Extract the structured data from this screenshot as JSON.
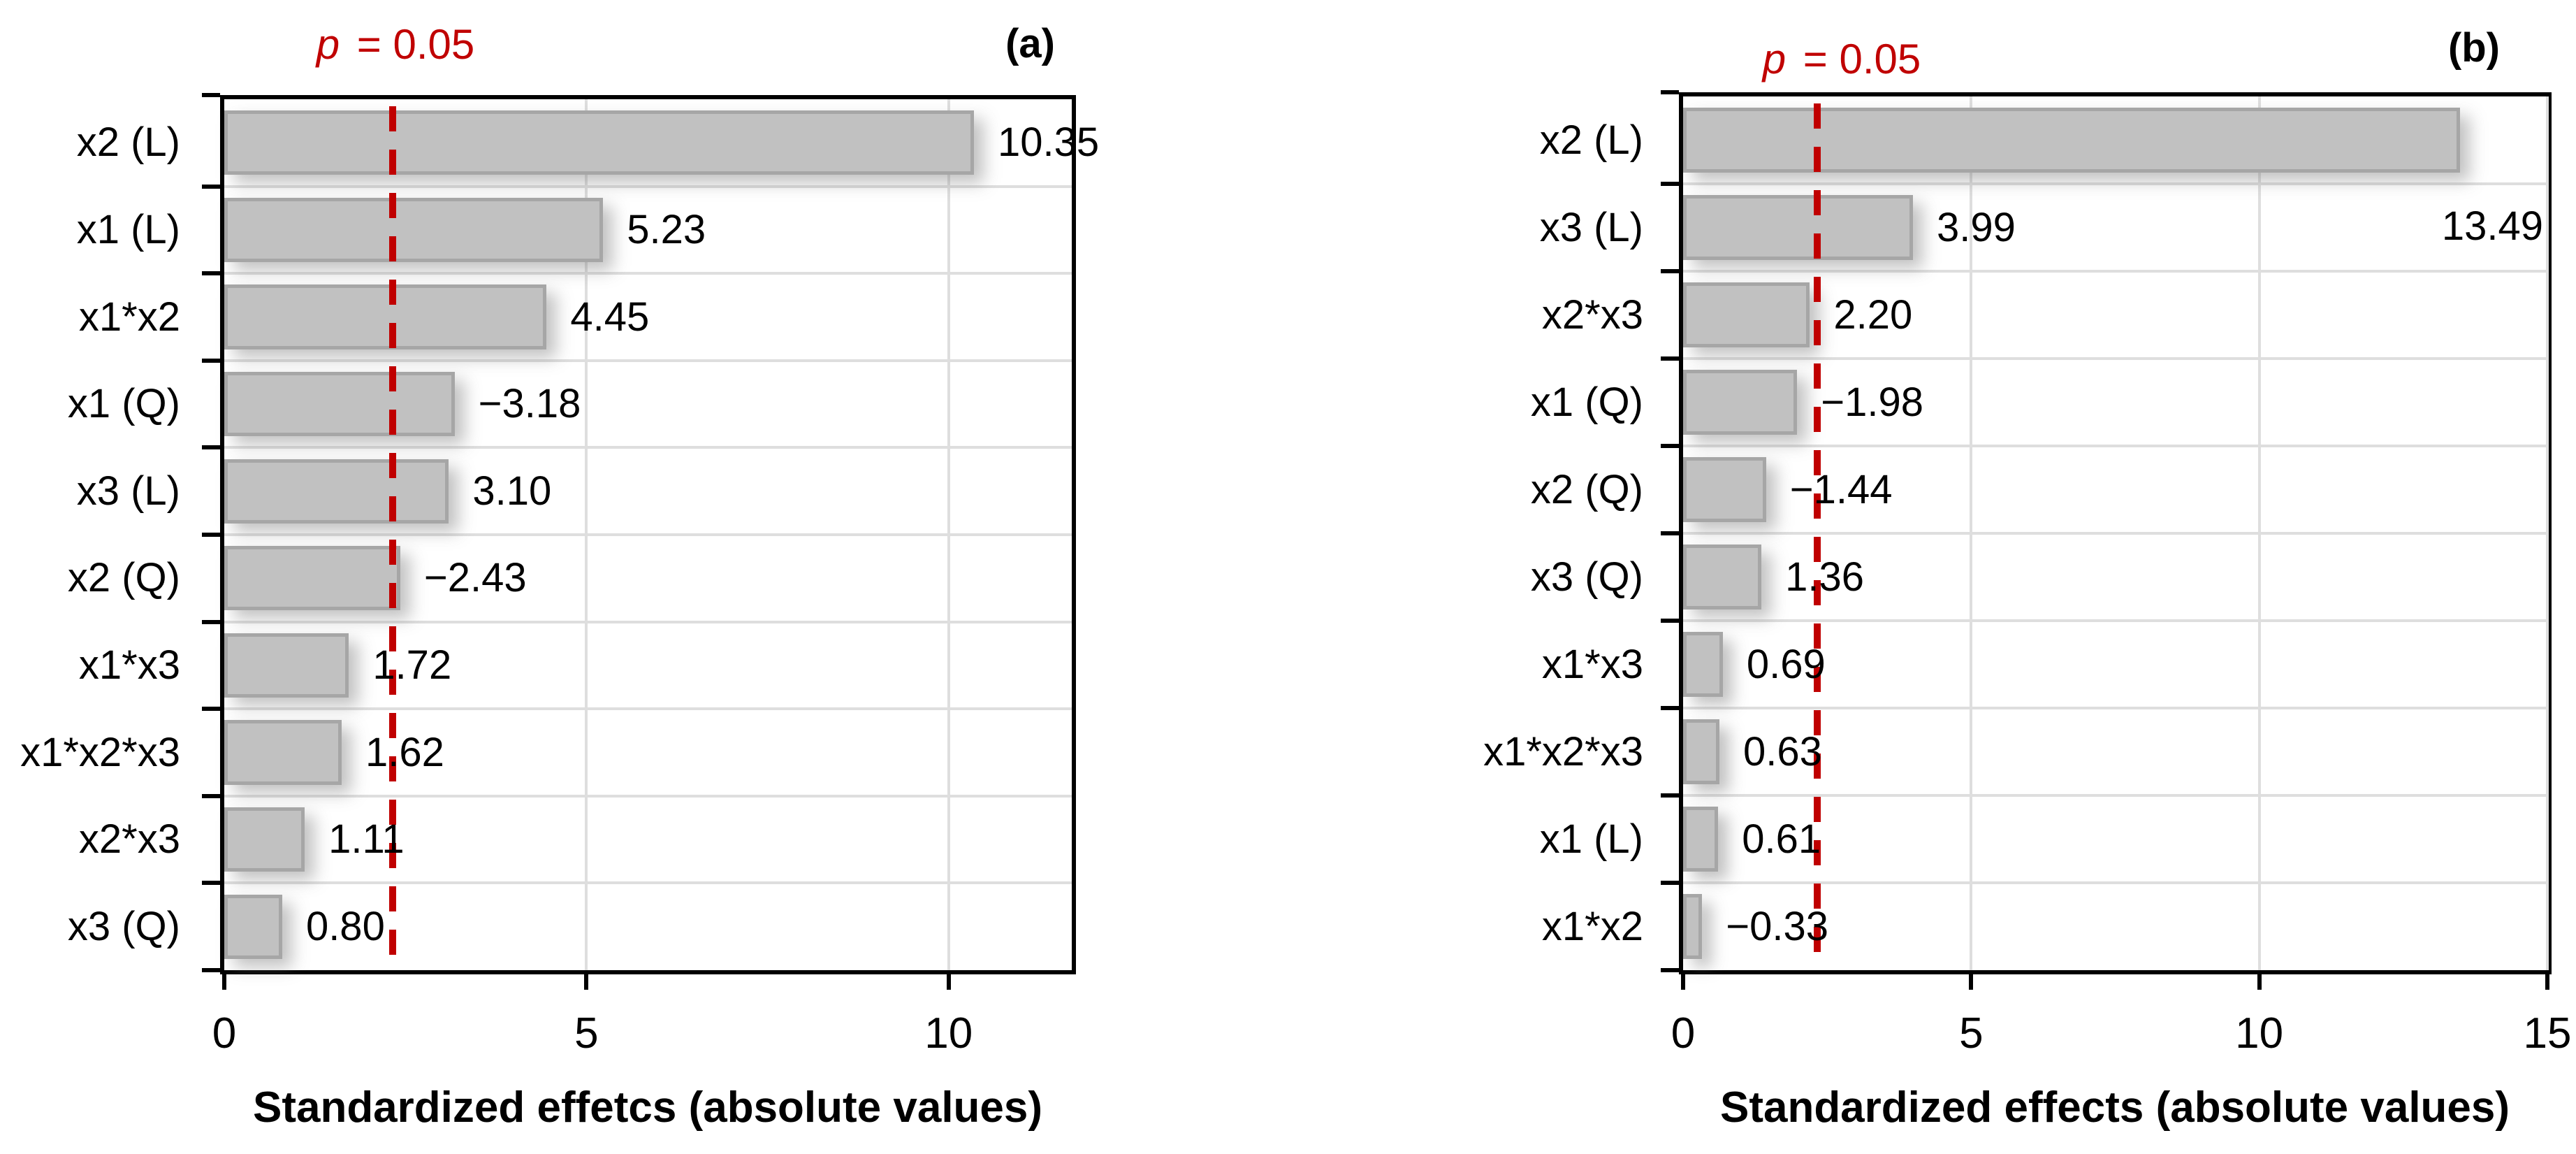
{
  "colors": {
    "bar_fill": "#c1c1c1",
    "bar_border": "#a6a6a6",
    "threshold_line": "#c00000",
    "grid": "#dedede",
    "axis": "#000000",
    "text": "#000000"
  },
  "chart_data": [
    {
      "type": "bar",
      "orientation": "horizontal",
      "panel_tag": "(a)",
      "p_symbol": "p",
      "p_rest": " = 0.05",
      "significance_label": "p = 0.05",
      "threshold_x": 2.32,
      "xlabel": "Standardized effetcs (absolute values)",
      "xlim": [
        0,
        11.7
      ],
      "xticks": [
        0,
        5,
        10
      ],
      "xtick_labels": [
        "0",
        "5",
        "10"
      ],
      "grid": true,
      "legend": false,
      "categories": [
        "x2 (L)",
        "x1 (L)",
        "x1*x2",
        "x1 (Q)",
        "x3 (L)",
        "x2 (Q)",
        "x1*x3",
        "x1*x2*x3",
        "x2*x3",
        "x3 (Q)"
      ],
      "values": [
        10.35,
        5.23,
        4.45,
        -3.18,
        3.1,
        -2.43,
        1.72,
        1.62,
        1.11,
        0.8
      ],
      "value_labels": [
        "10.35",
        "5.23",
        "4.45",
        "−3.18",
        "3.10",
        "−2.43",
        "1.72",
        "1.62",
        "1.11",
        "0.80"
      ],
      "first_value_label_below": false
    },
    {
      "type": "bar",
      "orientation": "horizontal",
      "panel_tag": "(b)",
      "p_symbol": "p",
      "p_rest": " = 0.05",
      "significance_label": "p = 0.05",
      "threshold_x": 2.33,
      "xlabel": "Standardized effects (absolute values)",
      "xlim": [
        0,
        15
      ],
      "xticks": [
        0,
        5,
        10,
        15
      ],
      "xtick_labels": [
        "0",
        "5",
        "10",
        "15"
      ],
      "grid": true,
      "legend": false,
      "categories": [
        "x2 (L)",
        "x3 (L)",
        "x2*x3",
        "x1 (Q)",
        "x2 (Q)",
        "x3 (Q)",
        "x1*x3",
        "x1*x2*x3",
        "x1 (L)",
        "x1*x2"
      ],
      "values": [
        13.49,
        3.99,
        2.2,
        -1.98,
        -1.44,
        1.36,
        0.69,
        0.63,
        0.61,
        -0.33
      ],
      "value_labels": [
        "13.49",
        "3.99",
        "2.20",
        "−1.98",
        "−1.44",
        "1.36",
        "0.69",
        "0.63",
        "0.61",
        "−0.33"
      ],
      "first_value_label_below": true
    }
  ]
}
